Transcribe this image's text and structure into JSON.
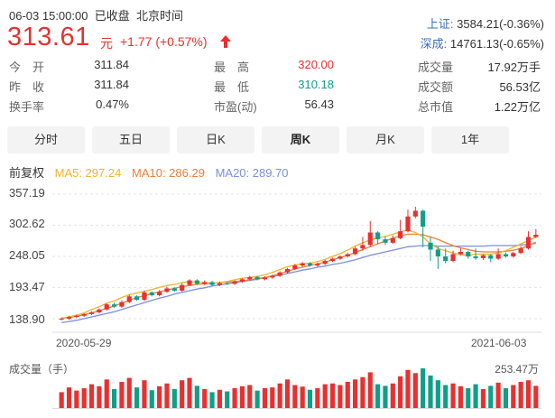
{
  "header": {
    "datetime": "06-03 15:00:00",
    "status": "已收盘",
    "timezone": "北京时间",
    "price": "313.61",
    "unit": "元",
    "change": "+1.77 (+0.57%)",
    "arrow_icon": "up-arrow-icon",
    "color_up": "#e93030",
    "color_down": "#0f9f87"
  },
  "indices": [
    {
      "name": "上证:",
      "value": "3584.21(-0.36%)"
    },
    {
      "name": "深成:",
      "value": "14761.13(-0.65%)"
    }
  ],
  "stats": [
    {
      "label": "今　开",
      "value": "311.84"
    },
    {
      "label": "最　高",
      "value": "320.00",
      "tone": "red"
    },
    {
      "label": "成交量",
      "value": "17.92万手"
    },
    {
      "label": "昨　收",
      "value": "311.84"
    },
    {
      "label": "最　低",
      "value": "310.18",
      "tone": "green"
    },
    {
      "label": "成交额",
      "value": "56.53亿"
    },
    {
      "label": "换手率",
      "value": "0.47%"
    },
    {
      "label": "市盈(动)",
      "value": "56.43"
    },
    {
      "label": "总市值",
      "value": "1.22万亿"
    }
  ],
  "tabs": [
    {
      "label": "分时",
      "active": false
    },
    {
      "label": "五日",
      "active": false
    },
    {
      "label": "日K",
      "active": false
    },
    {
      "label": "周K",
      "active": true
    },
    {
      "label": "月K",
      "active": false
    },
    {
      "label": "1年",
      "active": false
    }
  ],
  "ma": {
    "adj": "前复权",
    "ma5": "MA5: 297.24",
    "ma10": "MA10: 286.29",
    "ma20": "MA20: 289.70",
    "color_ma5": "#f0b429",
    "color_ma10": "#e8803a",
    "color_ma20": "#7a8fdc"
  },
  "chart_data": {
    "type": "candlestick",
    "y_ticks": [
      "357.19",
      "302.62",
      "248.05",
      "193.47",
      "138.90"
    ],
    "ylim": [
      138.9,
      357.19
    ],
    "x_start_label": "2020-05-29",
    "x_end_label": "2021-06-03",
    "candles": [
      [
        138,
        139,
        136,
        141
      ],
      [
        139,
        142,
        137,
        144
      ],
      [
        142,
        144,
        140,
        146
      ],
      [
        144,
        147,
        142,
        148
      ],
      [
        147,
        150,
        145,
        152
      ],
      [
        150,
        155,
        148,
        157
      ],
      [
        155,
        164,
        153,
        166
      ],
      [
        164,
        160,
        158,
        167
      ],
      [
        160,
        168,
        158,
        171
      ],
      [
        168,
        178,
        166,
        181
      ],
      [
        178,
        172,
        170,
        180
      ],
      [
        172,
        185,
        170,
        188
      ],
      [
        185,
        180,
        178,
        187
      ],
      [
        180,
        186,
        178,
        189
      ],
      [
        186,
        192,
        184,
        195
      ],
      [
        192,
        188,
        186,
        194
      ],
      [
        188,
        198,
        186,
        201
      ],
      [
        198,
        206,
        196,
        208
      ],
      [
        206,
        200,
        198,
        208
      ],
      [
        200,
        203,
        198,
        206
      ],
      [
        203,
        198,
        196,
        205
      ],
      [
        198,
        201,
        196,
        204
      ],
      [
        201,
        200,
        198,
        203
      ],
      [
        200,
        204,
        198,
        206
      ],
      [
        204,
        208,
        202,
        210
      ],
      [
        208,
        212,
        206,
        214
      ],
      [
        212,
        208,
        206,
        214
      ],
      [
        208,
        211,
        206,
        213
      ],
      [
        211,
        214,
        209,
        216
      ],
      [
        214,
        220,
        212,
        222
      ],
      [
        220,
        226,
        218,
        228
      ],
      [
        226,
        232,
        224,
        235
      ],
      [
        232,
        236,
        230,
        238
      ],
      [
        236,
        232,
        230,
        238
      ],
      [
        232,
        235,
        230,
        237
      ],
      [
        235,
        240,
        233,
        242
      ],
      [
        240,
        244,
        238,
        246
      ],
      [
        244,
        248,
        242,
        250
      ],
      [
        248,
        252,
        246,
        254
      ],
      [
        252,
        262,
        250,
        265
      ],
      [
        262,
        268,
        258,
        282
      ],
      [
        268,
        290,
        265,
        310
      ],
      [
        290,
        278,
        270,
        292
      ],
      [
        278,
        272,
        268,
        283
      ],
      [
        272,
        280,
        270,
        285
      ],
      [
        280,
        292,
        278,
        312
      ],
      [
        292,
        318,
        290,
        330
      ],
      [
        318,
        328,
        315,
        335
      ],
      [
        328,
        300,
        264,
        330
      ],
      [
        272,
        260,
        240,
        282
      ],
      [
        260,
        248,
        226,
        265
      ],
      [
        248,
        240,
        236,
        262
      ],
      [
        240,
        252,
        238,
        258
      ],
      [
        252,
        256,
        250,
        262
      ],
      [
        256,
        248,
        244,
        258
      ],
      [
        248,
        245,
        242,
        262
      ],
      [
        245,
        250,
        242,
        252
      ],
      [
        250,
        244,
        238,
        252
      ],
      [
        244,
        252,
        242,
        262
      ],
      [
        252,
        248,
        246,
        255
      ],
      [
        248,
        254,
        246,
        256
      ],
      [
        254,
        262,
        252,
        266
      ],
      [
        262,
        282,
        260,
        292
      ],
      [
        282,
        286,
        280,
        296
      ]
    ],
    "ma5": [
      140,
      142,
      145,
      149,
      155,
      160,
      166,
      170,
      176,
      181,
      184,
      187,
      190,
      194,
      197,
      199,
      202,
      204,
      203,
      202,
      201,
      202,
      204,
      207,
      210,
      211,
      213,
      216,
      220,
      225,
      230,
      233,
      235,
      236,
      239,
      243,
      248,
      253,
      259,
      266,
      272,
      277,
      280,
      283,
      287,
      291,
      294,
      290,
      282,
      270,
      262,
      258,
      254,
      251,
      250,
      252,
      252,
      252,
      254,
      258,
      264,
      270,
      276,
      282
    ],
    "ma10": [
      140,
      141,
      143,
      146,
      149,
      153,
      157,
      161,
      166,
      171,
      176,
      179,
      183,
      186,
      189,
      192,
      195,
      197,
      199,
      200,
      201,
      202,
      203,
      204,
      205,
      207,
      209,
      211,
      214,
      218,
      222,
      226,
      229,
      232,
      235,
      238,
      242,
      246,
      250,
      255,
      260,
      265,
      270,
      275,
      280,
      284,
      287,
      287,
      286,
      282,
      278,
      272,
      267,
      263,
      260,
      257,
      256,
      256,
      256,
      257,
      259,
      262,
      267,
      273
    ],
    "ma20": [
      132,
      134,
      136,
      139,
      142,
      145,
      148,
      151,
      155,
      159,
      163,
      167,
      171,
      175,
      178,
      182,
      185,
      188,
      191,
      193,
      196,
      198,
      200,
      202,
      204,
      206,
      208,
      211,
      213,
      215,
      218,
      221,
      224,
      226,
      229,
      231,
      234,
      236,
      239,
      242,
      246,
      250,
      253,
      256,
      259,
      262,
      265,
      266,
      267,
      267,
      266,
      266,
      266,
      266,
      266,
      266,
      266,
      267,
      267,
      267,
      267,
      268,
      269,
      271
    ],
    "volume_label": "成交量（手）",
    "volume_max": "253.47万",
    "volumes": [
      40,
      52,
      44,
      50,
      60,
      55,
      72,
      48,
      66,
      76,
      52,
      70,
      45,
      55,
      62,
      48,
      70,
      76,
      56,
      48,
      40,
      46,
      42,
      50,
      55,
      58,
      44,
      50,
      52,
      62,
      72,
      58,
      54,
      46,
      50,
      60,
      62,
      58,
      66,
      72,
      78,
      90,
      60,
      56,
      62,
      80,
      96,
      88,
      100,
      82,
      70,
      58,
      62,
      55,
      50,
      60,
      48,
      56,
      64,
      50,
      58,
      66,
      70,
      56
    ]
  }
}
